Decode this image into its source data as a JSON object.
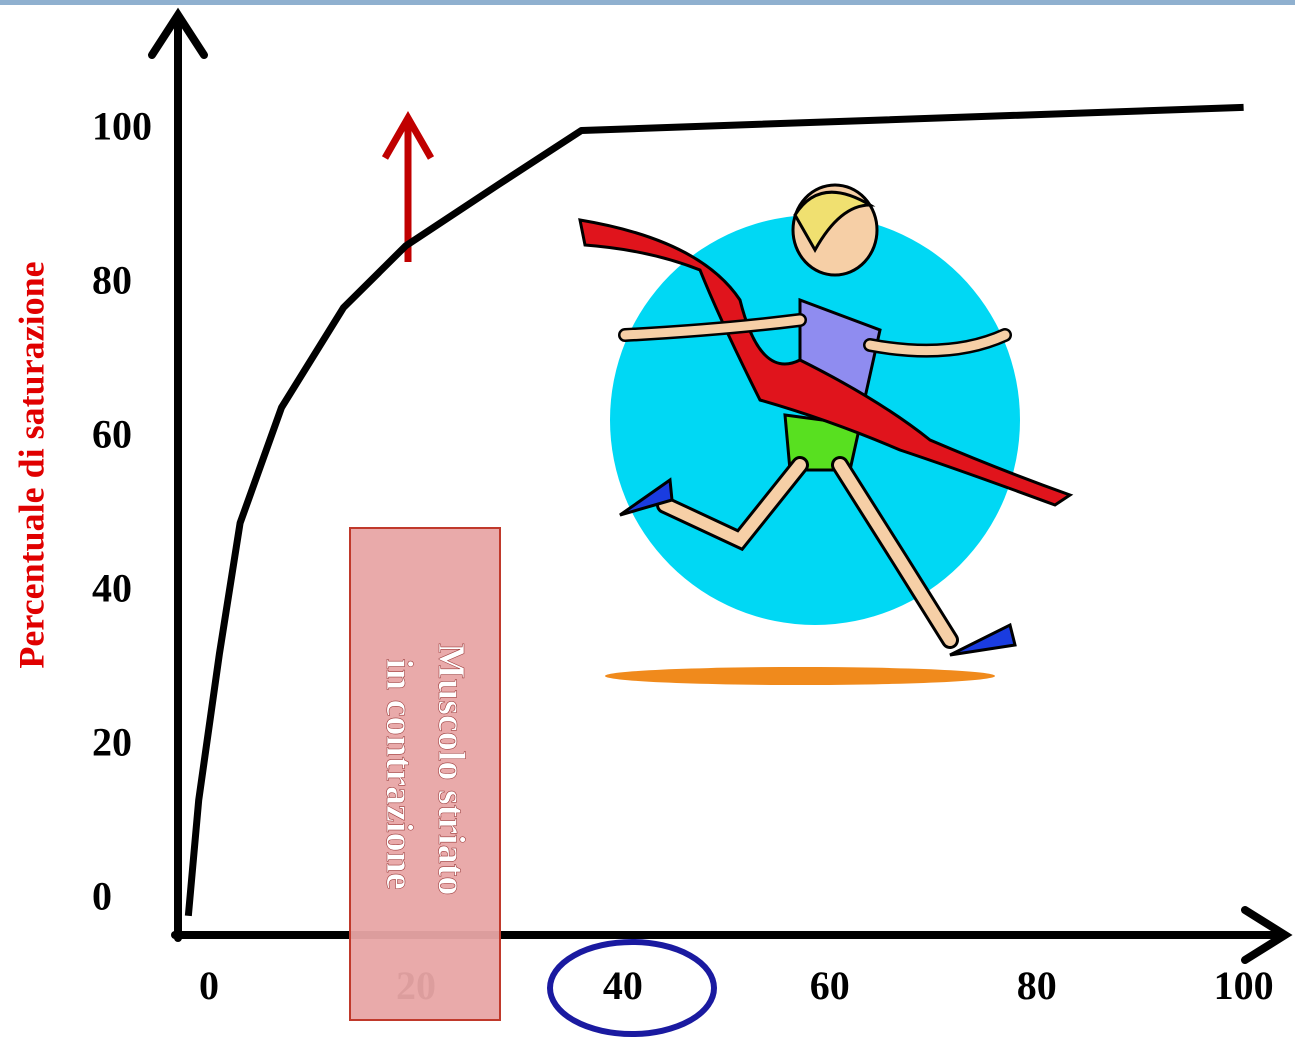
{
  "chart_data": {
    "type": "line",
    "y_label": "Percentuale di saturazione",
    "x": [
      -2,
      -1,
      1,
      3,
      7,
      13,
      19,
      28,
      36,
      100
    ],
    "series": [
      {
        "color": "#000000",
        "values": [
          -2,
          13,
          32,
          49,
          64,
          77,
          85,
          93,
          100,
          103
        ]
      }
    ],
    "xlim": [
      -3,
      104
    ],
    "ylim": [
      -4.5,
      115
    ],
    "xticks": [
      0,
      20,
      40,
      60,
      80,
      100
    ],
    "yticks": [
      0,
      20,
      40,
      60,
      80,
      100
    ],
    "annotation_lines": [
      "Muscolo striato",
      "in contrazione"
    ]
  }
}
